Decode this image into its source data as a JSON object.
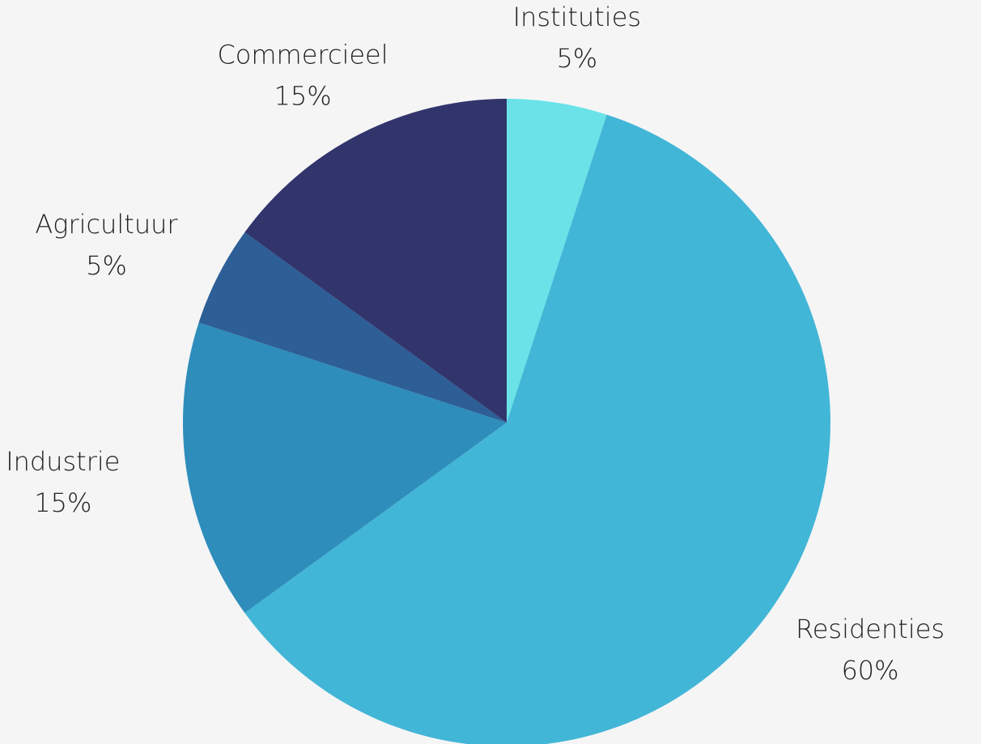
{
  "chart_data": {
    "type": "pie",
    "categories": [
      "Instituties",
      "Residenties",
      "Industrie",
      "Agricultuur",
      "Commercieel"
    ],
    "values": [
      5,
      60,
      15,
      5,
      15
    ],
    "value_labels": [
      "5%",
      "60%",
      "15%",
      "5%",
      "15%"
    ],
    "colors": [
      "#6ae2e8",
      "#42b6d6",
      "#2e8dbb",
      "#2d5e96",
      "#32346c"
    ]
  }
}
